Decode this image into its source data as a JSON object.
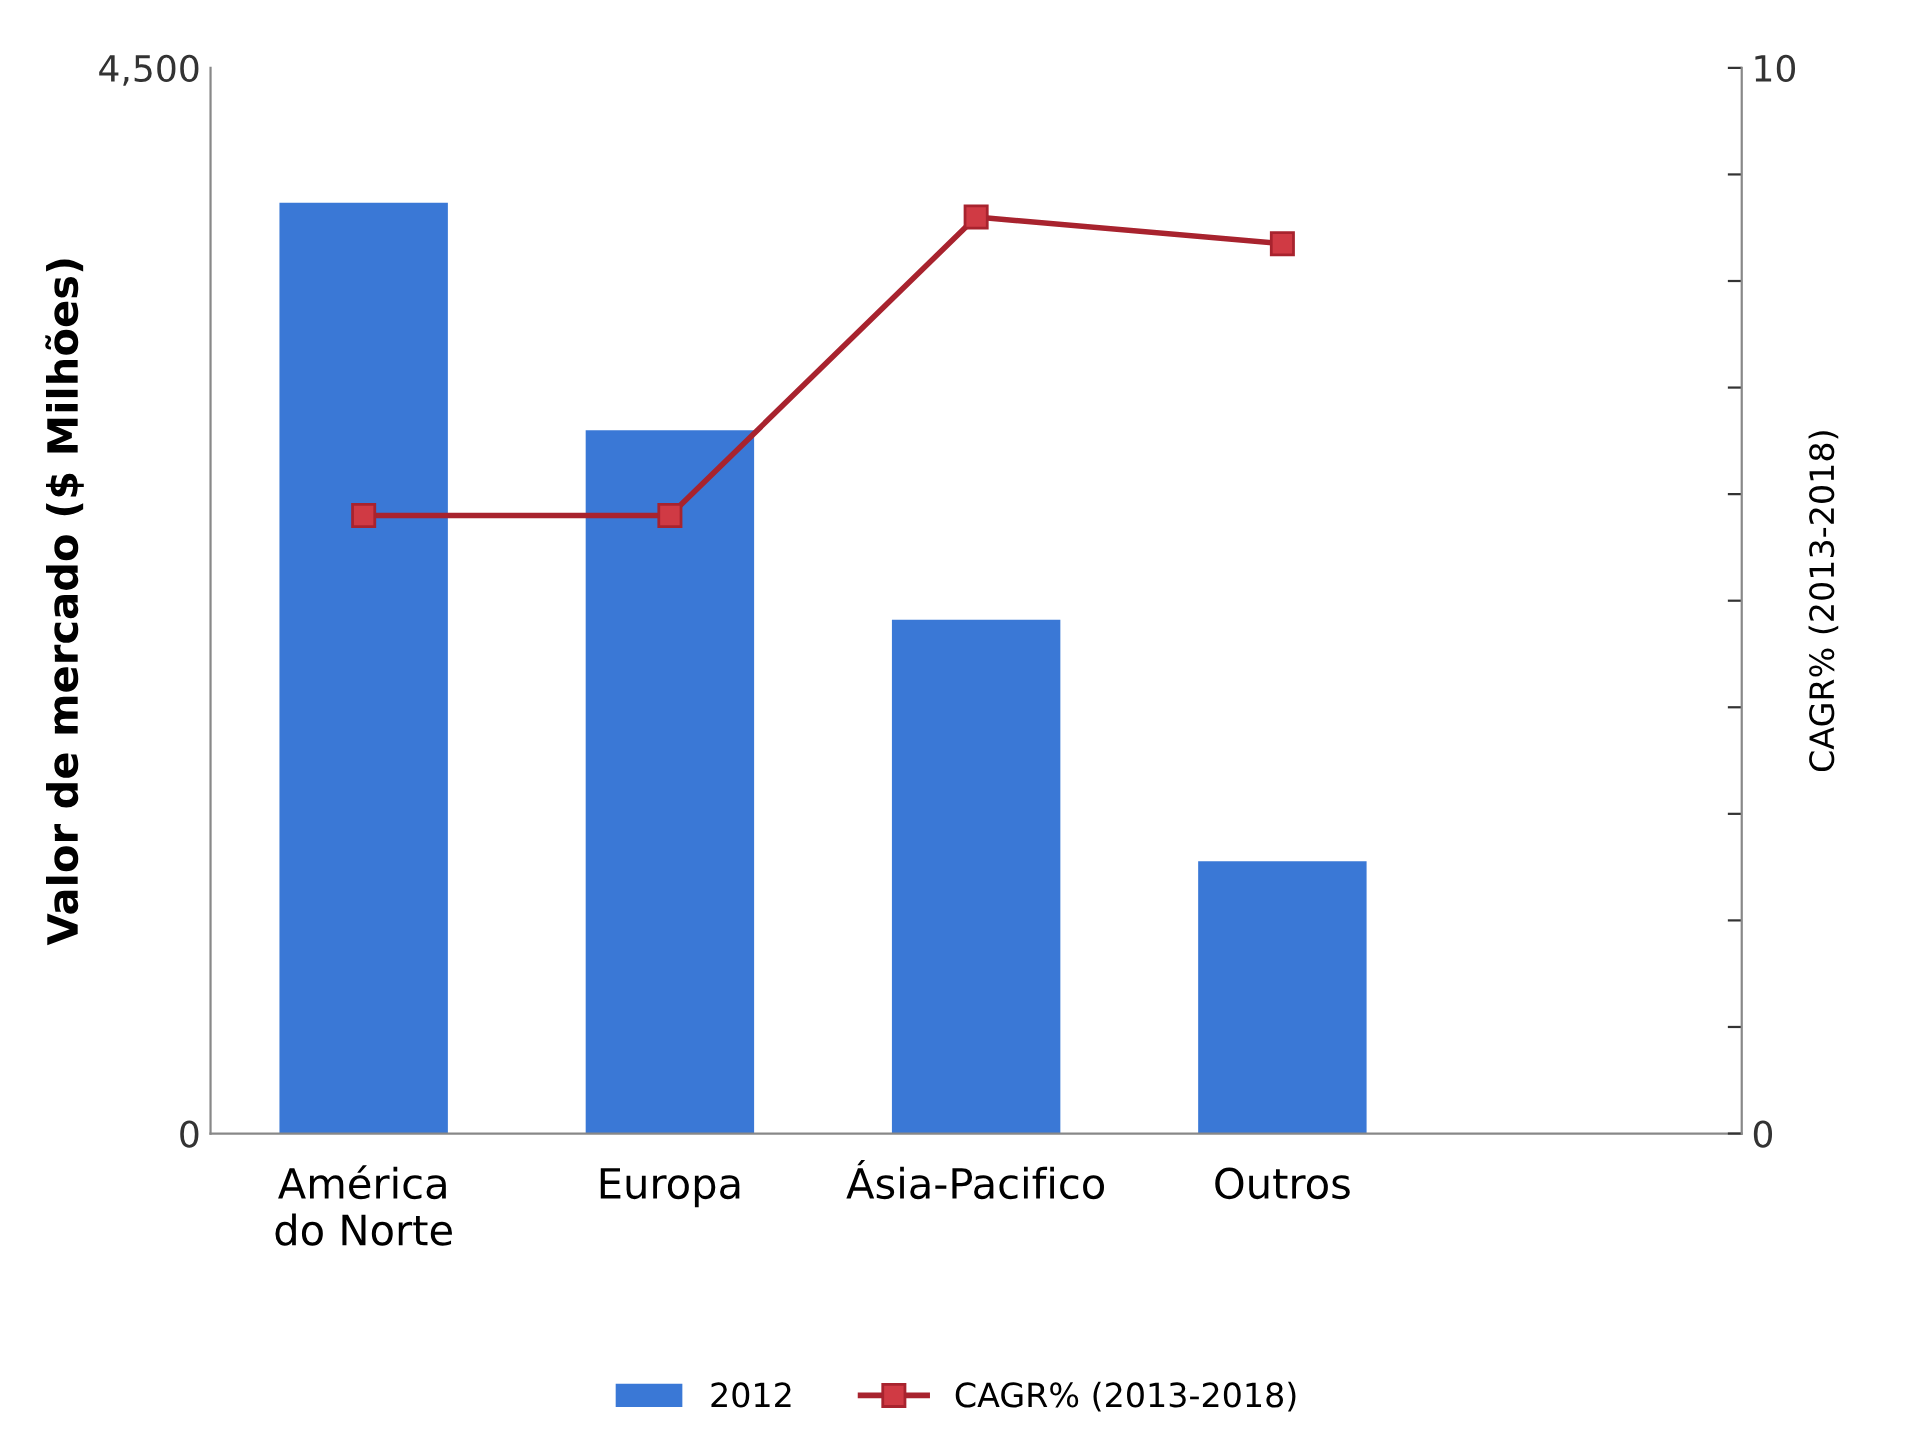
{
  "chart_data": {
    "type": "bar",
    "ylabel": "Valor de mercado ($ Milhões)",
    "y2label": "CAGR% (2013-2018)",
    "categories": [
      "América\ndo Norte",
      "Europa",
      "Ásia-Pacifico",
      "Outros",
      null
    ],
    "series": [
      {
        "name": "2012",
        "color": "#3a78d6",
        "values": [
          3930,
          2970,
          2170,
          1150,
          null
        ]
      },
      {
        "name": "CAGR% (2013-2018)",
        "type": "line",
        "axis": "y2",
        "color": "#a8232e",
        "marker": "square",
        "values": [
          5.8,
          5.8,
          8.6,
          8.35,
          null
        ]
      }
    ],
    "ylim": [
      0,
      4500
    ],
    "yticks": [
      0,
      {
        "value": 4500,
        "label": "4,500"
      }
    ],
    "y2lim": [
      0,
      10
    ],
    "y2ticks": [
      0,
      {
        "value": 1,
        "label": null
      },
      {
        "value": 2,
        "label": null
      },
      {
        "value": 3,
        "label": null
      },
      {
        "value": 4,
        "label": null
      },
      {
        "value": 5,
        "label": null
      },
      {
        "value": 6,
        "label": null
      },
      {
        "value": 7,
        "label": null
      },
      {
        "value": 8,
        "label": null
      },
      {
        "value": 9,
        "label": null
      },
      10
    ],
    "grid": false,
    "legend": "bottom"
  }
}
